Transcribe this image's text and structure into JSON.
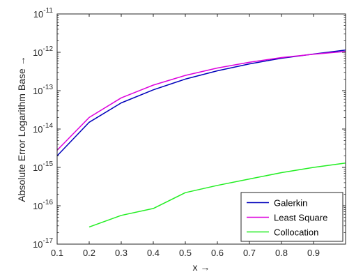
{
  "chart_data": {
    "type": "line",
    "xlabel": "x →",
    "ylabel": "Absolute Error Logarithm Base →",
    "xlim": [
      0.1,
      1.0
    ],
    "ylim": [
      1e-17,
      1e-11
    ],
    "yscale": "log",
    "grid": false,
    "legend_position": "bottom-right",
    "x_ticks": [
      0.1,
      0.2,
      0.3,
      0.4,
      0.5,
      0.6,
      0.7,
      0.8,
      0.9
    ],
    "x_tick_labels": [
      "0.1",
      "0.2",
      "0.3",
      "0.4",
      "0.5",
      "0.6",
      "0.7",
      "0.8",
      "0.9"
    ],
    "y_ticks": [
      1e-17,
      1e-16,
      1e-15,
      1e-14,
      1e-13,
      1e-12,
      1e-11
    ],
    "y_tick_labels": [
      {
        "base": "10",
        "exp": "-17"
      },
      {
        "base": "10",
        "exp": "-16"
      },
      {
        "base": "10",
        "exp": "-15"
      },
      {
        "base": "10",
        "exp": "-14"
      },
      {
        "base": "10",
        "exp": "-13"
      },
      {
        "base": "10",
        "exp": "-12"
      },
      {
        "base": "10",
        "exp": "-11"
      }
    ],
    "series": [
      {
        "name": "Galerkin",
        "color": "#0000bb",
        "x": [
          0.1,
          0.2,
          0.3,
          0.4,
          0.5,
          0.6,
          0.7,
          0.8,
          0.9,
          1.0
        ],
        "y": [
          2e-15,
          1.5e-14,
          4.8e-14,
          1.05e-13,
          2e-13,
          3.3e-13,
          5e-13,
          7e-13,
          9e-13,
          1.15e-12
        ]
      },
      {
        "name": "Least Square",
        "color": "#dd00dd",
        "x": [
          0.1,
          0.2,
          0.3,
          0.4,
          0.5,
          0.6,
          0.7,
          0.8,
          0.9,
          1.0
        ],
        "y": [
          2.8e-15,
          2e-14,
          6.5e-14,
          1.4e-13,
          2.5e-13,
          3.9e-13,
          5.5e-13,
          7.3e-13,
          8.9e-13,
          1.05e-12
        ]
      },
      {
        "name": "Collocation",
        "color": "#22ee22",
        "x": [
          0.2,
          0.3,
          0.4,
          0.5,
          0.6,
          0.7,
          0.8,
          0.9,
          1.0
        ],
        "y": [
          2.8e-17,
          5.6e-17,
          8.5e-17,
          2.2e-16,
          3.4e-16,
          5e-16,
          7.3e-16,
          1e-15,
          1.3e-15
        ]
      }
    ]
  }
}
